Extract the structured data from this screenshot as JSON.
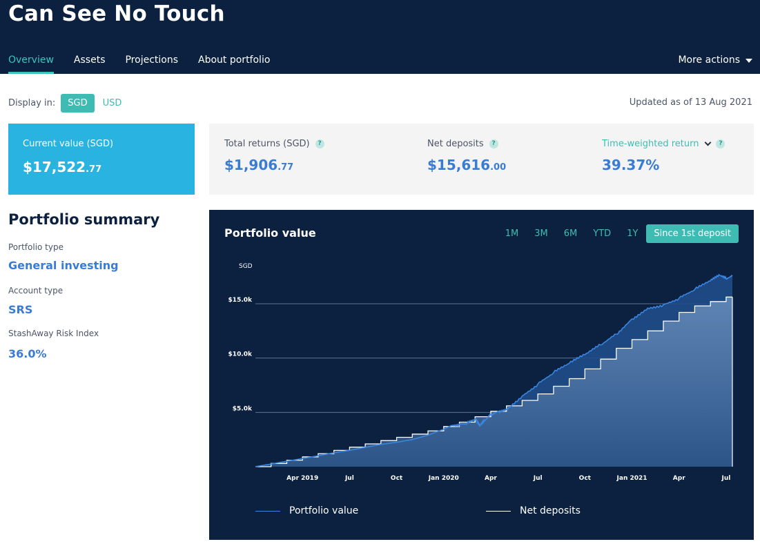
{
  "header": {
    "title": "Can See No Touch",
    "tabs": [
      {
        "label": "Overview",
        "active": true
      },
      {
        "label": "Assets",
        "active": false
      },
      {
        "label": "Projections",
        "active": false
      },
      {
        "label": "About portfolio",
        "active": false
      }
    ],
    "more_actions": "More actions"
  },
  "display": {
    "label": "Display in:",
    "options": [
      {
        "label": "SGD",
        "active": true
      },
      {
        "label": "USD",
        "active": false
      }
    ],
    "updated": "Updated as of 13 Aug 2021"
  },
  "current_value": {
    "label": "Current value (SGD)",
    "whole": "$17,522",
    "cents": ".77"
  },
  "stats": [
    {
      "label": "Total returns (SGD)",
      "whole": "$1,906",
      "cents": ".77",
      "help": "?"
    },
    {
      "label": "Net deposits",
      "whole": "$15,616",
      "cents": ".00",
      "help": "?"
    },
    {
      "label": "Time-weighted return",
      "whole": "39.37%",
      "cents": "",
      "help": "?"
    }
  ],
  "summary": {
    "title": "Portfolio summary",
    "items": [
      {
        "label": "Portfolio type",
        "value": "General investing"
      },
      {
        "label": "Account type",
        "value": "SRS"
      },
      {
        "label": "StashAway Risk Index",
        "value": "36.0%"
      }
    ]
  },
  "chart": {
    "title": "Portfolio value",
    "ranges": [
      {
        "label": "1M",
        "active": false
      },
      {
        "label": "3M",
        "active": false
      },
      {
        "label": "6M",
        "active": false
      },
      {
        "label": "YTD",
        "active": false
      },
      {
        "label": "1Y",
        "active": false
      },
      {
        "label": "Since 1st deposit",
        "active": true
      }
    ],
    "legend": {
      "portfolio": "Portfolio value",
      "deposits": "Net deposits"
    }
  },
  "colors": {
    "header_bg": "#0b213f",
    "accent_teal": "#3ebcb3",
    "card_blue": "#29b3e0",
    "value_blue": "#3a7bd5",
    "portfolio_line": "#3a86e0",
    "deposits_line": "#ffffff"
  },
  "chart_data": {
    "type": "area",
    "title": "Portfolio value",
    "ylabel": "SGD",
    "ylim": [
      0,
      19000
    ],
    "yticks": [
      {
        "value": 5000,
        "label": "$5.0k"
      },
      {
        "value": 10000,
        "label": "$10.0k"
      },
      {
        "value": 15000,
        "label": "$15.0k"
      }
    ],
    "xlim": [
      0,
      30.4
    ],
    "xticks": [
      {
        "value": 3,
        "label": "Apr 2019"
      },
      {
        "value": 6,
        "label": "Jul"
      },
      {
        "value": 9,
        "label": "Oct"
      },
      {
        "value": 12,
        "label": "Jan 2020"
      },
      {
        "value": 15,
        "label": "Apr"
      },
      {
        "value": 18,
        "label": "Jul"
      },
      {
        "value": 21,
        "label": "Oct"
      },
      {
        "value": 24,
        "label": "Jan 2021"
      },
      {
        "value": 27,
        "label": "Apr"
      },
      {
        "value": 30,
        "label": "Jul"
      }
    ],
    "series": [
      {
        "name": "Portfolio value",
        "x": [
          0,
          1,
          2,
          3,
          4,
          5,
          6,
          7,
          8,
          9,
          10,
          11,
          12,
          12.5,
          13,
          13.5,
          14,
          14.3,
          14.6,
          15,
          15.5,
          16,
          17,
          18,
          19,
          20,
          21,
          22,
          23,
          24,
          25,
          26,
          27,
          28,
          29,
          29.6,
          30,
          30.4
        ],
        "values": [
          0,
          250,
          500,
          750,
          1000,
          1280,
          1500,
          1780,
          2050,
          2250,
          2500,
          2900,
          3450,
          3800,
          3900,
          4000,
          4350,
          3750,
          4200,
          4800,
          5100,
          5300,
          6500,
          7600,
          8650,
          9500,
          10300,
          11200,
          12200,
          13600,
          14600,
          14900,
          15500,
          16300,
          17100,
          17600,
          17300,
          17550
        ]
      },
      {
        "name": "Net deposits",
        "x": [
          0,
          1,
          2,
          3,
          4,
          5,
          6,
          7,
          8,
          9,
          10,
          11,
          12,
          13,
          14,
          15,
          16,
          17,
          18,
          19,
          20,
          21,
          22,
          23,
          24,
          25,
          26,
          27,
          28,
          29,
          30,
          30.4
        ],
        "values": [
          0,
          300,
          600,
          900,
          1200,
          1500,
          1800,
          2100,
          2400,
          2700,
          3000,
          3300,
          3700,
          4100,
          4600,
          5100,
          5600,
          6100,
          6700,
          7400,
          8100,
          9000,
          9900,
          10900,
          11700,
          12500,
          13400,
          14200,
          14800,
          15200,
          15616,
          15616
        ]
      }
    ]
  }
}
